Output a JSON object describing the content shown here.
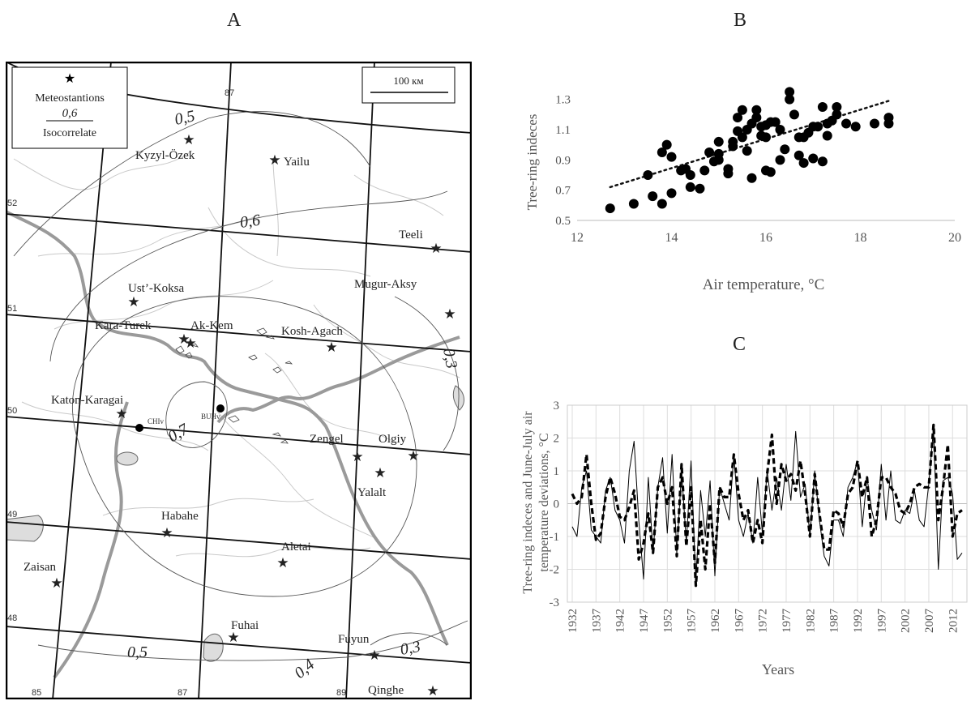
{
  "panels": {
    "a": "A",
    "b": "B",
    "c": "C"
  },
  "map": {
    "legend": {
      "stations": "Meteostantions",
      "iso_value": "0,6",
      "iso_label": "Isocorrelate"
    },
    "scale": "100 км",
    "stations": [
      {
        "name": "Kyzyl-Ozek",
        "label": "Kyzyl-Özek"
      },
      {
        "name": "Yailu",
        "label": "Yailu"
      },
      {
        "name": "Teeli",
        "label": "Teeli"
      },
      {
        "name": "Ust-Koksa",
        "label": "Ust’-Koksa"
      },
      {
        "name": "Mugur-Aksy",
        "label": "Mugur-Aksy"
      },
      {
        "name": "Kara-Turek",
        "label": "Kara-Turek"
      },
      {
        "name": "Ak-Kem",
        "label": "Ak-Kem"
      },
      {
        "name": "Kosh-Agach",
        "label": "Kosh-Agach"
      },
      {
        "name": "Katon-Karagai",
        "label": "Katon-Karagai"
      },
      {
        "name": "Zengel",
        "label": "Zengel"
      },
      {
        "name": "Olgiy",
        "label": "Olgiy"
      },
      {
        "name": "Yalalt",
        "label": "Yalalt"
      },
      {
        "name": "Habahe",
        "label": "Habahe"
      },
      {
        "name": "Aletai",
        "label": "Aletai"
      },
      {
        "name": "Zaisan",
        "label": "Zaisan"
      },
      {
        "name": "Fuhai",
        "label": "Fuhai"
      },
      {
        "name": "Fuyun",
        "label": "Fuyun"
      },
      {
        "name": "Qinghe",
        "label": "Qinghe"
      }
    ],
    "sites": [
      {
        "label": "CHIv"
      },
      {
        "label": "BUHv"
      }
    ],
    "isolines": [
      "0,5",
      "0,6",
      "0,3",
      "0,7",
      "0,5",
      "0,4",
      "0,3"
    ],
    "grid_labels": [
      "87",
      "52",
      "51",
      "50",
      "49",
      "48",
      "85",
      "87",
      "89"
    ]
  },
  "chart_data": [
    {
      "type": "scatter",
      "panel": "B",
      "xlabel": "Air temperature, °C",
      "ylabel": "Tree-ring indeces",
      "xlim": [
        12,
        20
      ],
      "ylim": [
        0.5,
        1.4
      ],
      "xticks": [
        "12",
        "14",
        "16",
        "18",
        "20"
      ],
      "yticks": [
        "0.5",
        "0.7",
        "0.9",
        "1.1",
        "1.3"
      ],
      "trendline": {
        "style": "dotted",
        "start": [
          12.7,
          0.72
        ],
        "end": [
          18.6,
          1.29
        ]
      },
      "points": [
        [
          12.7,
          0.58
        ],
        [
          13.2,
          0.61
        ],
        [
          13.5,
          0.8
        ],
        [
          13.6,
          0.66
        ],
        [
          13.8,
          0.61
        ],
        [
          13.8,
          0.95
        ],
        [
          13.9,
          1.0
        ],
        [
          14.0,
          0.68
        ],
        [
          14.0,
          0.92
        ],
        [
          14.2,
          0.83
        ],
        [
          14.3,
          0.84
        ],
        [
          14.4,
          0.72
        ],
        [
          14.4,
          0.8
        ],
        [
          14.6,
          0.71
        ],
        [
          14.7,
          0.83
        ],
        [
          14.8,
          0.95
        ],
        [
          14.9,
          0.89
        ],
        [
          15.0,
          0.9
        ],
        [
          15.0,
          1.02
        ],
        [
          15.0,
          0.94
        ],
        [
          15.2,
          0.84
        ],
        [
          15.2,
          0.81
        ],
        [
          15.3,
          1.02
        ],
        [
          15.3,
          0.99
        ],
        [
          15.4,
          1.09
        ],
        [
          15.4,
          1.18
        ],
        [
          15.5,
          1.23
        ],
        [
          15.5,
          1.05
        ],
        [
          15.6,
          1.1
        ],
        [
          15.6,
          0.96
        ],
        [
          15.7,
          1.14
        ],
        [
          15.7,
          0.78
        ],
        [
          15.8,
          1.23
        ],
        [
          15.8,
          1.18
        ],
        [
          15.9,
          1.12
        ],
        [
          15.9,
          1.06
        ],
        [
          16.0,
          1.05
        ],
        [
          16.0,
          0.83
        ],
        [
          16.0,
          1.13
        ],
        [
          16.1,
          0.82
        ],
        [
          16.1,
          1.15
        ],
        [
          16.2,
          1.15
        ],
        [
          16.3,
          1.1
        ],
        [
          16.3,
          0.9
        ],
        [
          16.4,
          0.97
        ],
        [
          16.5,
          1.35
        ],
        [
          16.5,
          1.3
        ],
        [
          16.6,
          1.2
        ],
        [
          16.7,
          0.93
        ],
        [
          16.7,
          1.05
        ],
        [
          16.8,
          0.88
        ],
        [
          16.8,
          1.05
        ],
        [
          16.9,
          1.08
        ],
        [
          17.0,
          0.91
        ],
        [
          17.0,
          1.12
        ],
        [
          17.1,
          1.12
        ],
        [
          17.2,
          1.25
        ],
        [
          17.2,
          0.89
        ],
        [
          17.3,
          1.06
        ],
        [
          17.3,
          1.14
        ],
        [
          17.4,
          1.16
        ],
        [
          17.5,
          1.25
        ],
        [
          17.5,
          1.2
        ],
        [
          17.7,
          1.14
        ],
        [
          17.9,
          1.12
        ],
        [
          18.3,
          1.14
        ],
        [
          18.6,
          1.14
        ],
        [
          18.6,
          1.18
        ]
      ]
    },
    {
      "type": "line",
      "panel": "C",
      "xlabel": "Years",
      "ylabel": "Tree-ring indeces and June-July air temperature deviations, °C",
      "ylim": [
        -3,
        3
      ],
      "yticks": [
        "3",
        "2",
        "1",
        "0",
        "-1",
        "-2",
        "-3"
      ],
      "xtick_labels": [
        "1932",
        "1937",
        "1942",
        "1947",
        "1952",
        "1957",
        "1962",
        "1967",
        "1972",
        "1977",
        "1982",
        "1987",
        "1992",
        "1997",
        "2002",
        "2007",
        "2012"
      ],
      "x": [
        1932,
        1933,
        1934,
        1935,
        1936,
        1937,
        1938,
        1939,
        1940,
        1941,
        1942,
        1943,
        1944,
        1945,
        1946,
        1947,
        1948,
        1949,
        1950,
        1951,
        1952,
        1953,
        1954,
        1955,
        1956,
        1957,
        1958,
        1959,
        1960,
        1961,
        1962,
        1963,
        1964,
        1965,
        1966,
        1967,
        1968,
        1969,
        1970,
        1971,
        1972,
        1973,
        1974,
        1975,
        1976,
        1977,
        1978,
        1979,
        1980,
        1981,
        1982,
        1983,
        1984,
        1985,
        1986,
        1987,
        1988,
        1989,
        1990,
        1991,
        1992,
        1993,
        1994,
        1995,
        1996,
        1997,
        1998,
        1999,
        2000,
        2001,
        2002,
        2003,
        2004,
        2005,
        2006,
        2007,
        2008,
        2009,
        2010,
        2011,
        2012,
        2013,
        2014
      ],
      "series": [
        {
          "style": "thin-solid",
          "values": [
            -0.7,
            -1.0,
            0.5,
            1.0,
            -0.8,
            -1.0,
            -1.2,
            0.4,
            0.8,
            -0.2,
            -0.5,
            -1.2,
            1.0,
            1.9,
            -0.5,
            -2.3,
            0.8,
            -1.5,
            0.5,
            1.4,
            -0.9,
            1.5,
            -1.5,
            1.0,
            -1.2,
            1.3,
            -2.4,
            0.4,
            -1.0,
            0.7,
            -2.2,
            0.5,
            0.0,
            -0.5,
            1.5,
            -0.5,
            -1.0,
            -0.3,
            -1.2,
            0.8,
            -0.9,
            1.0,
            -0.2,
            0.8,
            -0.2,
            1.2,
            0.1,
            2.2,
            0.2,
            0.6,
            -1.0,
            1.0,
            -0.5,
            -1.6,
            -1.9,
            -0.5,
            -0.5,
            -1.0,
            0.5,
            0.8,
            1.3,
            -0.7,
            0.8,
            -0.2,
            -0.8,
            1.2,
            -0.5,
            1.0,
            -0.5,
            -0.6,
            -0.2,
            -0.3,
            0.4,
            -0.5,
            -0.7,
            0.6,
            2.3,
            -2.0,
            0.7,
            0.8,
            0.3,
            -1.7,
            -1.5
          ]
        },
        {
          "style": "thick-dashed",
          "values": [
            0.3,
            0.0,
            0.2,
            1.5,
            0.0,
            -1.1,
            -0.9,
            0.2,
            0.8,
            0.3,
            -0.4,
            -0.5,
            -0.1,
            0.4,
            -1.7,
            -1.2,
            -0.3,
            -1.5,
            0.5,
            0.8,
            0.0,
            0.5,
            -1.6,
            1.2,
            -1.3,
            0.5,
            -2.5,
            -0.5,
            -2.0,
            0.0,
            -1.8,
            0.5,
            0.2,
            0.2,
            1.5,
            0.3,
            -0.5,
            -0.2,
            -1.2,
            -0.5,
            -1.2,
            0.9,
            2.1,
            0.0,
            1.2,
            0.7,
            0.9,
            0.4,
            1.3,
            0.3,
            -1.0,
            0.9,
            -0.3,
            -1.4,
            -1.4,
            -0.2,
            -0.3,
            -0.7,
            0.3,
            0.5,
            1.3,
            0.2,
            0.8,
            -1.0,
            -0.5,
            0.8,
            0.8,
            0.5,
            0.3,
            -0.2,
            -0.3,
            0.0,
            0.5,
            0.6,
            0.5,
            0.5,
            2.4,
            -0.5,
            0.5,
            1.8,
            -1.0,
            -0.3,
            -0.2
          ]
        }
      ]
    }
  ]
}
